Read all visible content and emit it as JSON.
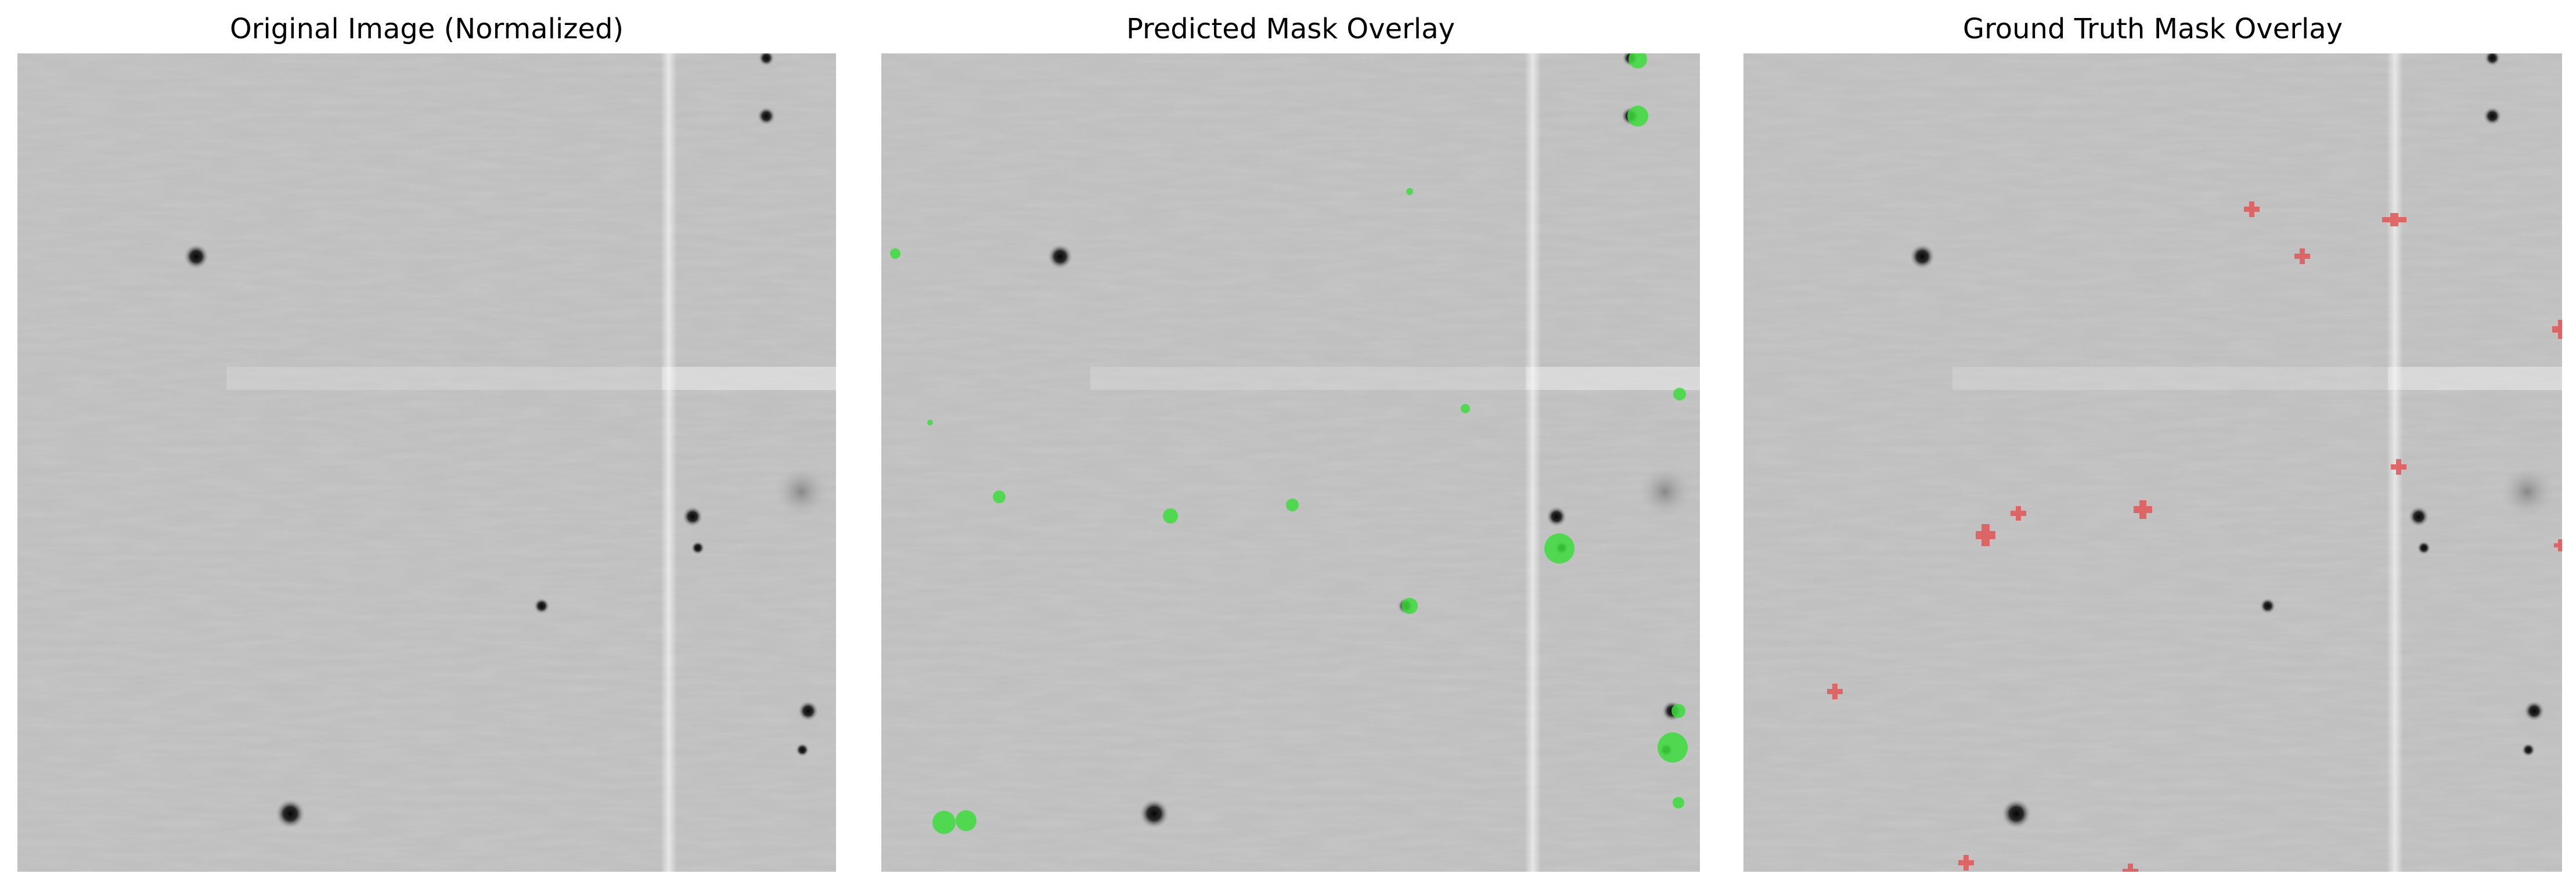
{
  "panels": [
    {
      "title": "Original Image (Normalized)",
      "overlay": "none"
    },
    {
      "title": "Predicted Mask Overlay",
      "overlay": "predicted",
      "overlay_color": "#3ddc3d"
    },
    {
      "title": "Ground Truth Mask Overlay",
      "overlay": "ground-truth",
      "overlay_color": "#e05555"
    }
  ],
  "colors": {
    "background": "#bfbfbf",
    "predicted": "#3ddc3d",
    "ground_truth": "#e05555"
  }
}
